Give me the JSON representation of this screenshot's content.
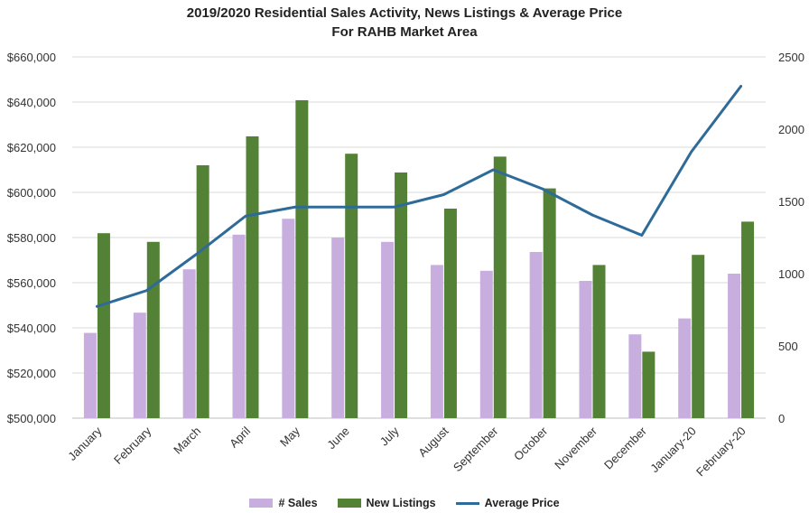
{
  "chart_data": {
    "type": "bar",
    "title": "2019/2020 Residential Sales Activity, News Listings & Average Price",
    "subtitle": "For RAHB Market Area",
    "categories": [
      "January",
      "February",
      "March",
      "April",
      "May",
      "June",
      "July",
      "August",
      "September",
      "October",
      "November",
      "December",
      "January-20",
      "February-20"
    ],
    "y_left": {
      "ticks": [
        "$500,000",
        "$520,000",
        "$540,000",
        "$560,000",
        "$580,000",
        "$600,000",
        "$620,000",
        "$640,000",
        "$660,000"
      ],
      "lim": [
        500000,
        660000
      ]
    },
    "y_right": {
      "ticks": [
        "0",
        "500",
        "1000",
        "1500",
        "2000",
        "2500"
      ],
      "lim": [
        0,
        2500
      ]
    },
    "series": [
      {
        "name": "# Sales",
        "type": "bar",
        "axis": "right",
        "color": "#c7aedf",
        "values": [
          590,
          730,
          1030,
          1270,
          1380,
          1250,
          1220,
          1060,
          1020,
          1150,
          950,
          580,
          690,
          1000
        ]
      },
      {
        "name": "New Listings",
        "type": "bar",
        "axis": "right",
        "color": "#538135",
        "values": [
          1280,
          1220,
          1750,
          1950,
          2200,
          1830,
          1700,
          1450,
          1810,
          1590,
          1060,
          460,
          1130,
          1360
        ]
      },
      {
        "name": "Average Price",
        "type": "line",
        "axis": "left",
        "color": "#2e6b99",
        "values": [
          549500,
          556500,
          572500,
          589500,
          593500,
          593500,
          593500,
          599000,
          610000,
          601500,
          590000,
          581000,
          618000,
          647000
        ]
      }
    ],
    "grid": true,
    "legend": "bottom"
  }
}
